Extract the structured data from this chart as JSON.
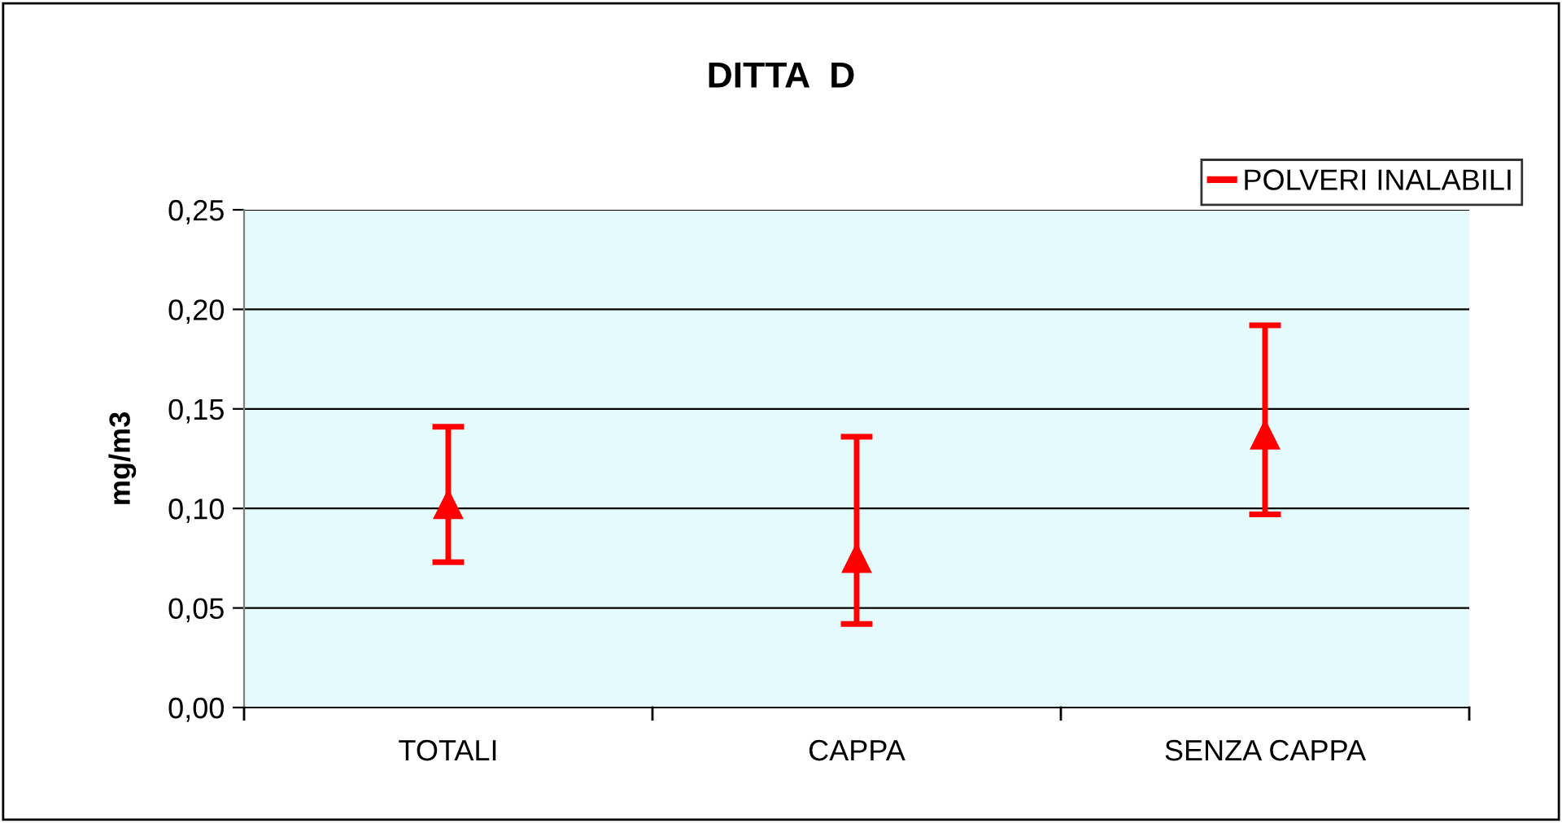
{
  "chart_data": {
    "type": "scatter",
    "title": "DITTA  D",
    "ylabel": "mg/m3",
    "categories": [
      "TOTALI",
      "CAPPA",
      "SENZA CAPPA"
    ],
    "series": [
      {
        "name": "POLVERI INALABILI",
        "color": "#ff0000",
        "values": [
          0.102,
          0.075,
          0.137
        ],
        "errors": [
          [
            0.073,
            0.141
          ],
          [
            0.042,
            0.136
          ],
          [
            0.097,
            0.192
          ]
        ]
      }
    ],
    "ylim": [
      0,
      0.25
    ],
    "yticks": [
      {
        "value": 0,
        "label": "0,00"
      },
      {
        "value": 0.05,
        "label": "0,05"
      },
      {
        "value": 0.1,
        "label": "0,10"
      },
      {
        "value": 0.15,
        "label": "0,15"
      },
      {
        "value": 0.2,
        "label": "0,20"
      },
      {
        "value": 0.25,
        "label": "0,25"
      }
    ],
    "grid": "y",
    "legend": "top right",
    "marker": "triangle"
  }
}
